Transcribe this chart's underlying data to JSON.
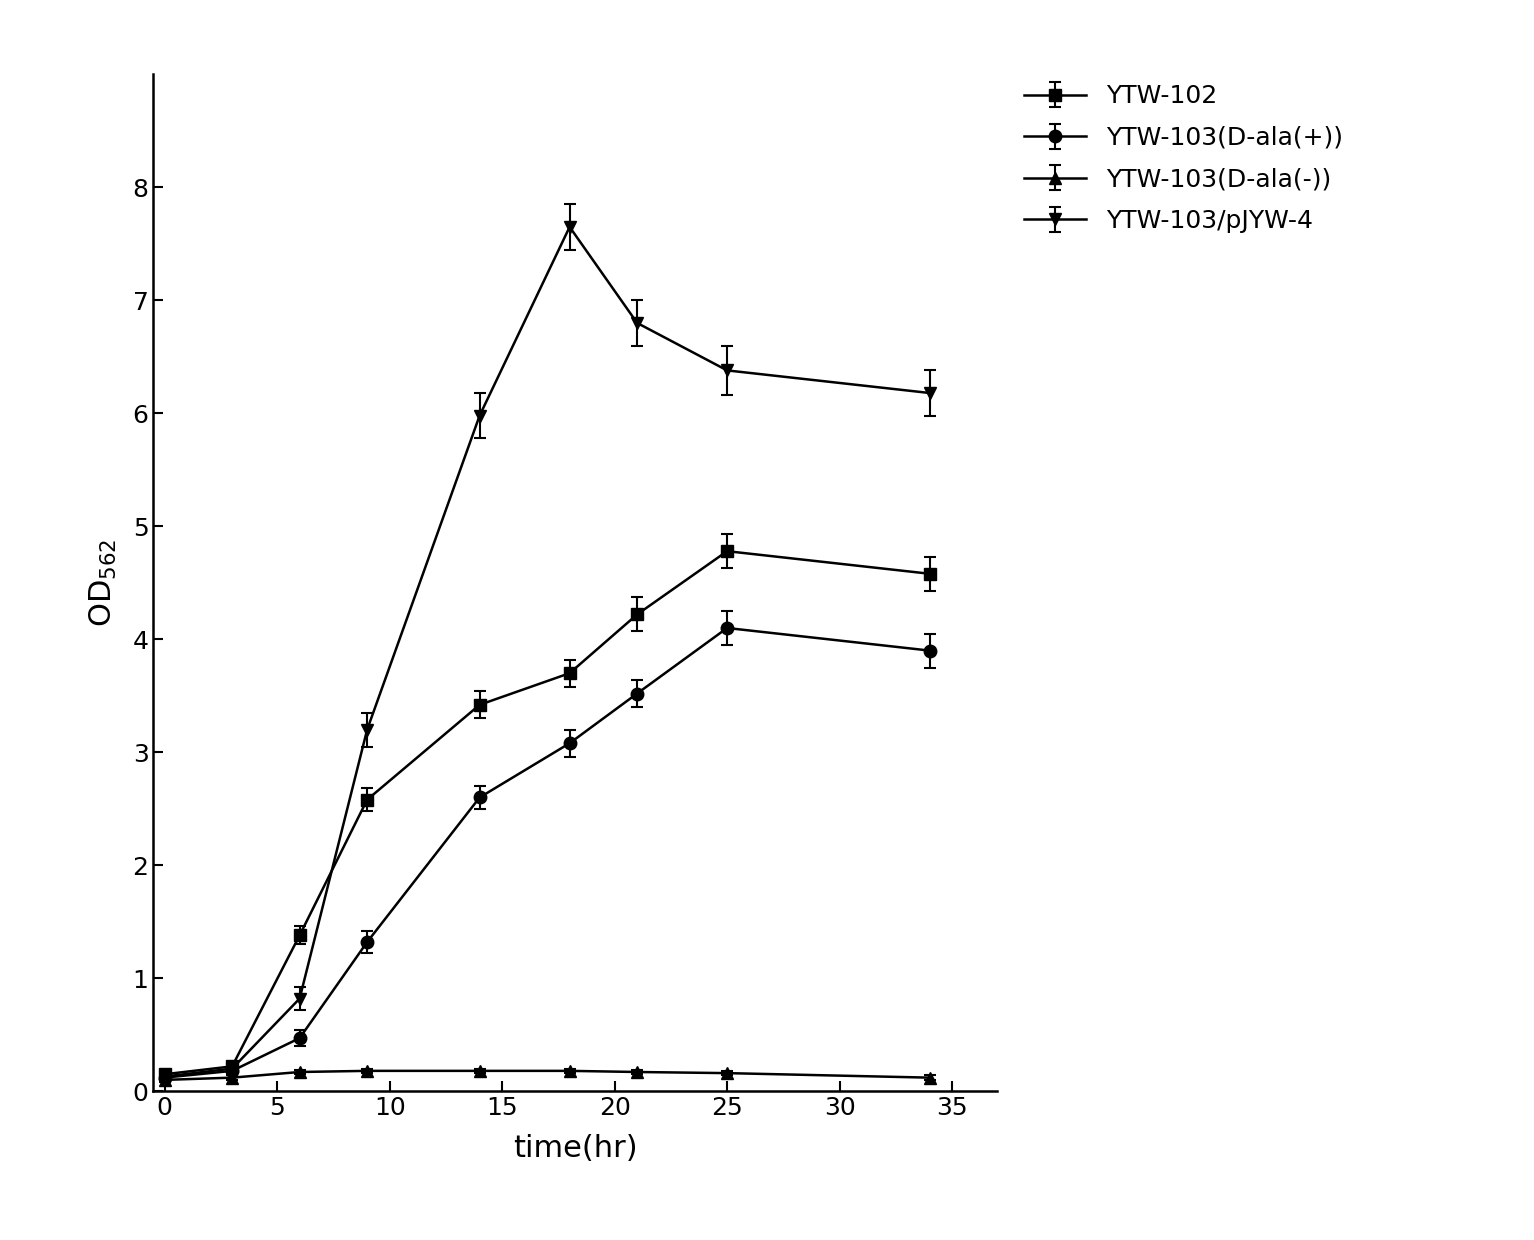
{
  "series": [
    {
      "label": "YTW-102",
      "marker": "s",
      "x": [
        0,
        3,
        6,
        9,
        14,
        18,
        21,
        25,
        34
      ],
      "y": [
        0.15,
        0.22,
        1.38,
        2.58,
        3.42,
        3.7,
        4.22,
        4.78,
        4.58
      ],
      "yerr": [
        0.04,
        0.04,
        0.08,
        0.1,
        0.12,
        0.12,
        0.15,
        0.15,
        0.15
      ]
    },
    {
      "label": "YTW-103(D-ala(+))",
      "marker": "o",
      "x": [
        0,
        3,
        6,
        9,
        14,
        18,
        21,
        25,
        34
      ],
      "y": [
        0.12,
        0.18,
        0.47,
        1.32,
        2.6,
        3.08,
        3.52,
        4.1,
        3.9
      ],
      "yerr": [
        0.03,
        0.04,
        0.07,
        0.1,
        0.1,
        0.12,
        0.12,
        0.15,
        0.15
      ]
    },
    {
      "label": "YTW-103(D-ala(-))",
      "marker": "^",
      "x": [
        0,
        3,
        6,
        9,
        14,
        18,
        21,
        25,
        34
      ],
      "y": [
        0.1,
        0.12,
        0.17,
        0.18,
        0.18,
        0.18,
        0.17,
        0.16,
        0.12
      ],
      "yerr": [
        0.02,
        0.02,
        0.02,
        0.02,
        0.02,
        0.02,
        0.02,
        0.02,
        0.02
      ]
    },
    {
      "label": "YTW-103/pJYW-4",
      "marker": "v",
      "x": [
        0,
        3,
        6,
        9,
        14,
        18,
        21,
        25,
        34
      ],
      "y": [
        0.13,
        0.2,
        0.82,
        3.2,
        5.98,
        7.65,
        6.8,
        6.38,
        6.18
      ],
      "yerr": [
        0.04,
        0.05,
        0.1,
        0.15,
        0.2,
        0.2,
        0.2,
        0.22,
        0.2
      ]
    }
  ],
  "xlabel": "time(hr)",
  "ylabel": "OD$_{562}$",
  "xlim": [
    -0.5,
    37
  ],
  "ylim": [
    0,
    9
  ],
  "xticks": [
    0,
    5,
    10,
    15,
    20,
    25,
    30,
    35
  ],
  "yticks": [
    0,
    1,
    2,
    3,
    4,
    5,
    6,
    7,
    8
  ],
  "color": "#000000",
  "linewidth": 1.8,
  "markersize": 9,
  "fontsize_label": 22,
  "fontsize_tick": 18,
  "fontsize_legend": 18
}
